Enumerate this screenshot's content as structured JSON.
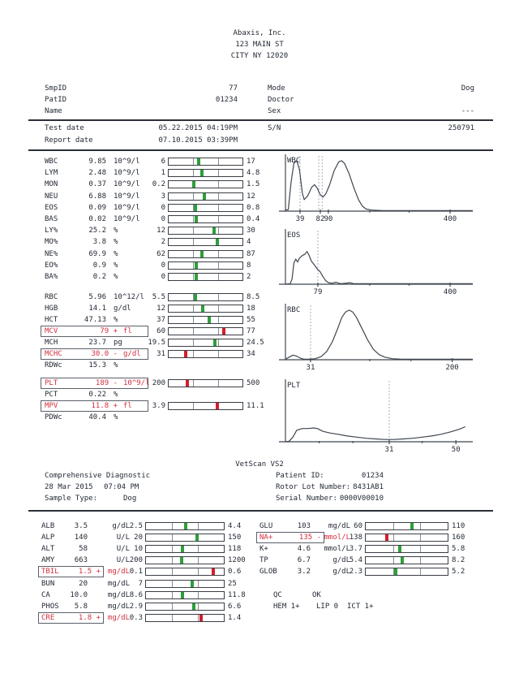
{
  "palette": {
    "ink": "#232a36",
    "flag_red": "#d22f3f",
    "marker_green": "#2f9e3c",
    "marker_red": "#d21f2b",
    "curve": "#3f4650",
    "dashed_line": "#a9afb5"
  },
  "header": {
    "org": "Abaxis, Inc.",
    "address1": "123 MAIN ST",
    "address2": "CITY NY 12020"
  },
  "patient_info": {
    "smp_id_label": "SmpID",
    "smp_id": "77",
    "pat_id_label": "PatID",
    "pat_id": "01234",
    "name_label": "Name",
    "name": "",
    "mode_label": "Mode",
    "mode": "Dog",
    "doctor_label": "Doctor",
    "doctor": "",
    "sex_label": "Sex",
    "sex": "---",
    "test_date_label": "Test date",
    "test_date": "05.22.2015 04:19PM",
    "report_date_label": "Report date",
    "report_date": "07.10.2015 03:39PM",
    "sn_label": "S/N",
    "sn": "250791"
  },
  "cbc": {
    "groups": [
      {
        "name": "wbc-differential",
        "rows": [
          {
            "label": "WBC",
            "value": "9.85",
            "unit": "10^9/l",
            "flag": null,
            "low": "6",
            "high": "17",
            "pos": 0.41
          },
          {
            "label": "LYM",
            "value": "2.48",
            "unit": "10^9/l",
            "flag": null,
            "low": "1",
            "high": "4.8",
            "pos": 0.45
          },
          {
            "label": "MON",
            "value": "0.37",
            "unit": "10^9/l",
            "flag": null,
            "low": "0.2",
            "high": "1.5",
            "pos": 0.34
          },
          {
            "label": "NEU",
            "value": "6.88",
            "unit": "10^9/l",
            "flag": null,
            "low": "3",
            "high": "12",
            "pos": 0.48
          },
          {
            "label": "EOS",
            "value": "0.09",
            "unit": "10^9/l",
            "flag": null,
            "low": "0",
            "high": "0.8",
            "pos": 0.36
          },
          {
            "label": "BAS",
            "value": "0.02",
            "unit": "10^9/l",
            "flag": null,
            "low": "0",
            "high": "0.4",
            "pos": 0.37
          },
          {
            "label": "LY%",
            "value": "25.2",
            "unit": "%",
            "flag": null,
            "low": "12",
            "high": "30",
            "pos": 0.61
          },
          {
            "label": "MO%",
            "value": "3.8",
            "unit": "%",
            "flag": null,
            "low": "2",
            "high": "4",
            "pos": 0.66
          },
          {
            "label": "NE%",
            "value": "69.9",
            "unit": "%",
            "flag": null,
            "low": "62",
            "high": "87",
            "pos": 0.45
          },
          {
            "label": "EO%",
            "value": "0.9",
            "unit": "%",
            "flag": null,
            "low": "0",
            "high": "8",
            "pos": 0.37
          },
          {
            "label": "BA%",
            "value": "0.2",
            "unit": "%",
            "flag": null,
            "low": "0",
            "high": "2",
            "pos": 0.37
          }
        ]
      },
      {
        "name": "rbc-indices",
        "rows": [
          {
            "label": "RBC",
            "value": "5.96",
            "unit": "10^12/l",
            "flag": null,
            "low": "5.5",
            "high": "8.5",
            "pos": 0.36
          },
          {
            "label": "HGB",
            "value": "14.1",
            "unit": "g/dl",
            "flag": null,
            "low": "12",
            "high": "18",
            "pos": 0.46
          },
          {
            "label": "HCT",
            "value": "47.13",
            "unit": "%",
            "flag": null,
            "low": "37",
            "high": "55",
            "pos": 0.55
          },
          {
            "label": "MCV",
            "value": "79",
            "unit": "fl",
            "flag": "+",
            "low": "60",
            "high": "77",
            "pos": 0.75
          },
          {
            "label": "MCH",
            "value": "23.7",
            "unit": "pg",
            "flag": null,
            "low": "19.5",
            "high": "24.5",
            "pos": 0.63
          },
          {
            "label": "MCHC",
            "value": "30.0",
            "unit": "g/dl",
            "flag": "-",
            "low": "31",
            "high": "34",
            "pos": 0.23
          },
          {
            "label": "RDWc",
            "value": "15.3",
            "unit": "%",
            "flag": null,
            "low": null,
            "high": null,
            "pos": null
          }
        ]
      },
      {
        "name": "platelets",
        "rows": [
          {
            "label": "PLT",
            "value": "189",
            "unit": "10^9/l",
            "flag": "-",
            "low": "200",
            "high": "500",
            "pos": 0.25
          },
          {
            "label": "PCT",
            "value": "0.22",
            "unit": "%",
            "flag": null,
            "low": null,
            "high": null,
            "pos": null
          },
          {
            "label": "MPV",
            "value": "11.8",
            "unit": "fl",
            "flag": "+",
            "low": "3.9",
            "high": "11.1",
            "pos": 0.66
          },
          {
            "label": "PDWc",
            "value": "40.4",
            "unit": "%",
            "flag": null,
            "low": null,
            "high": null,
            "pos": null
          }
        ]
      }
    ]
  },
  "chart_data": [
    {
      "type": "area",
      "name": "WBC",
      "xlabel_ticks": [
        "39",
        "82",
        "90",
        "400"
      ],
      "ticks": [
        {
          "pos": 0.078,
          "label": "39"
        },
        {
          "pos": 0.186,
          "label": "82"
        },
        {
          "pos": 0.229,
          "label": "90"
        },
        {
          "pos": 0.879,
          "label": "400"
        }
      ],
      "minor_ticks": [
        0.45,
        0.66
      ],
      "vlines": [
        0.078,
        0.178,
        0.196
      ],
      "points": [
        [
          0,
          0.02
        ],
        [
          0.015,
          0.03
        ],
        [
          0.03,
          0.55
        ],
        [
          0.045,
          0.92
        ],
        [
          0.06,
          0.97
        ],
        [
          0.075,
          0.8
        ],
        [
          0.09,
          0.35
        ],
        [
          0.1,
          0.22
        ],
        [
          0.12,
          0.3
        ],
        [
          0.14,
          0.46
        ],
        [
          0.155,
          0.51
        ],
        [
          0.17,
          0.44
        ],
        [
          0.185,
          0.32
        ],
        [
          0.2,
          0.27
        ],
        [
          0.215,
          0.33
        ],
        [
          0.235,
          0.5
        ],
        [
          0.26,
          0.78
        ],
        [
          0.285,
          0.95
        ],
        [
          0.3,
          0.97
        ],
        [
          0.315,
          0.92
        ],
        [
          0.34,
          0.72
        ],
        [
          0.365,
          0.45
        ],
        [
          0.39,
          0.22
        ],
        [
          0.41,
          0.1
        ],
        [
          0.43,
          0.04
        ],
        [
          0.46,
          0.02
        ],
        [
          0.52,
          0.01
        ],
        [
          0.6,
          0.01
        ],
        [
          0.7,
          0.01
        ],
        [
          0.85,
          0.01
        ],
        [
          1,
          0.01
        ]
      ]
    },
    {
      "type": "area",
      "name": "EOS",
      "xlabel_ticks": [
        "79",
        "400"
      ],
      "ticks": [
        {
          "pos": 0.173,
          "label": "79"
        },
        {
          "pos": 0.879,
          "label": "400"
        }
      ],
      "minor_ticks": [
        0.45,
        0.66
      ],
      "vlines": [
        0.173
      ],
      "points": [
        [
          0,
          0
        ],
        [
          0.025,
          0.01
        ],
        [
          0.035,
          0.1
        ],
        [
          0.045,
          0.42
        ],
        [
          0.055,
          0.5
        ],
        [
          0.065,
          0.44
        ],
        [
          0.075,
          0.52
        ],
        [
          0.09,
          0.57
        ],
        [
          0.105,
          0.6
        ],
        [
          0.115,
          0.65
        ],
        [
          0.125,
          0.58
        ],
        [
          0.14,
          0.45
        ],
        [
          0.155,
          0.38
        ],
        [
          0.17,
          0.3
        ],
        [
          0.185,
          0.25
        ],
        [
          0.2,
          0.15
        ],
        [
          0.215,
          0.07
        ],
        [
          0.23,
          0.03
        ],
        [
          0.25,
          0.02
        ],
        [
          0.27,
          0.04
        ],
        [
          0.285,
          0.02
        ],
        [
          0.3,
          0.01
        ],
        [
          0.345,
          0.03
        ],
        [
          0.365,
          0.01
        ],
        [
          0.42,
          0.01
        ],
        [
          0.55,
          0.01
        ],
        [
          0.75,
          0.01
        ],
        [
          1,
          0.01
        ]
      ]
    },
    {
      "type": "area",
      "name": "RBC",
      "xlabel_ticks": [
        "31",
        "200"
      ],
      "ticks": [
        {
          "pos": 0.134,
          "label": "31"
        },
        {
          "pos": 0.89,
          "label": "200"
        }
      ],
      "minor_ticks": [
        0.45,
        0.67
      ],
      "vlines": [
        0.134
      ],
      "points": [
        [
          0,
          0.01
        ],
        [
          0.02,
          0.05
        ],
        [
          0.04,
          0.09
        ],
        [
          0.06,
          0.07
        ],
        [
          0.08,
          0.03
        ],
        [
          0.1,
          0.01
        ],
        [
          0.13,
          0.01
        ],
        [
          0.16,
          0.02
        ],
        [
          0.19,
          0.06
        ],
        [
          0.22,
          0.16
        ],
        [
          0.25,
          0.35
        ],
        [
          0.28,
          0.62
        ],
        [
          0.3,
          0.82
        ],
        [
          0.32,
          0.93
        ],
        [
          0.34,
          0.97
        ],
        [
          0.36,
          0.93
        ],
        [
          0.38,
          0.82
        ],
        [
          0.41,
          0.6
        ],
        [
          0.44,
          0.38
        ],
        [
          0.47,
          0.2
        ],
        [
          0.5,
          0.1
        ],
        [
          0.53,
          0.05
        ],
        [
          0.57,
          0.02
        ],
        [
          0.62,
          0.01
        ],
        [
          0.7,
          0.01
        ],
        [
          0.85,
          0.01
        ],
        [
          1,
          0.01
        ]
      ]
    },
    {
      "type": "area",
      "name": "PLT",
      "xlabel_ticks": [
        "31",
        "50"
      ],
      "ticks": [
        {
          "pos": 0.554,
          "label": "31"
        },
        {
          "pos": 0.91,
          "label": "50"
        }
      ],
      "minor_ticks": [
        0.18,
        0.36,
        0.73
      ],
      "vlines": [
        0.554
      ],
      "points": [
        [
          0,
          0
        ],
        [
          0.02,
          0.01
        ],
        [
          0.04,
          0.08
        ],
        [
          0.06,
          0.2
        ],
        [
          0.09,
          0.23
        ],
        [
          0.12,
          0.23
        ],
        [
          0.15,
          0.24
        ],
        [
          0.17,
          0.23
        ],
        [
          0.2,
          0.18
        ],
        [
          0.24,
          0.15
        ],
        [
          0.28,
          0.13
        ],
        [
          0.33,
          0.1
        ],
        [
          0.38,
          0.08
        ],
        [
          0.43,
          0.06
        ],
        [
          0.48,
          0.05
        ],
        [
          0.53,
          0.04
        ],
        [
          0.58,
          0.04
        ],
        [
          0.63,
          0.05
        ],
        [
          0.68,
          0.06
        ],
        [
          0.73,
          0.08
        ],
        [
          0.78,
          0.1
        ],
        [
          0.83,
          0.13
        ],
        [
          0.88,
          0.17
        ],
        [
          0.93,
          0.22
        ],
        [
          0.96,
          0.26
        ]
      ]
    }
  ],
  "vs2": {
    "title": "VetScan VS2",
    "test_name": "Comprehensive Diagnostic",
    "date": "28 Mar 2015",
    "time": "07:04 PM",
    "sample_type_label": "Sample Type:",
    "sample_type": "Dog",
    "patient_id_label": "Patient ID:",
    "patient_id": "01234",
    "rotor_label": "Rotor Lot Number:",
    "rotor": "8431AB1",
    "serial_label": "Serial Number:",
    "serial": "0000V00010"
  },
  "chemistry": {
    "left_rows": [
      {
        "label": "ALB",
        "value": "3.5",
        "unit": "g/dL",
        "flag": null,
        "low": "2.5",
        "high": "4.4",
        "pos": 0.51
      },
      {
        "label": "ALP",
        "value": "140",
        "unit": "U/L",
        "flag": null,
        "low": "20",
        "high": "150",
        "pos": 0.66
      },
      {
        "label": "ALT",
        "value": "58",
        "unit": "U/L",
        "flag": null,
        "low": "10",
        "high": "118",
        "pos": 0.47
      },
      {
        "label": "AMY",
        "value": "663",
        "unit": "U/L",
        "flag": null,
        "low": "200",
        "high": "1200",
        "pos": 0.46
      },
      {
        "label": "TBIL",
        "value": "1.5",
        "unit": "mg/dL",
        "flag": "+",
        "low": "0.1",
        "high": "0.6",
        "pos": 0.86
      },
      {
        "label": "BUN",
        "value": "20",
        "unit": "mg/dL",
        "flag": null,
        "low": "7",
        "high": "25",
        "pos": 0.59
      },
      {
        "label": "CA",
        "value": "10.0",
        "unit": "mg/dL",
        "flag": null,
        "low": "8.6",
        "high": "11.8",
        "pos": 0.47
      },
      {
        "label": "PHOS",
        "value": "5.8",
        "unit": "mg/dL",
        "flag": null,
        "low": "2.9",
        "high": "6.6",
        "pos": 0.61
      },
      {
        "label": "CRE",
        "value": "1.8",
        "unit": "mg/dL",
        "flag": "+",
        "low": "0.3",
        "high": "1.4",
        "pos": 0.71
      }
    ],
    "right_rows": [
      {
        "label": "GLU",
        "value": "103",
        "unit": "mg/dL",
        "flag": null,
        "low": "60",
        "high": "110",
        "pos": 0.56
      },
      {
        "label": "NA+",
        "value": "135",
        "unit": "mmol/L",
        "flag": "-",
        "low": "138",
        "high": "160",
        "pos": 0.26
      },
      {
        "label": "K+",
        "value": "4.6",
        "unit": "mmol/L",
        "flag": null,
        "low": "3.7",
        "high": "5.8",
        "pos": 0.42
      },
      {
        "label": "TP",
        "value": "6.7",
        "unit": "g/dL",
        "flag": null,
        "low": "5.4",
        "high": "8.2",
        "pos": 0.45
      },
      {
        "label": "GLOB",
        "value": "3.2",
        "unit": "g/dL",
        "flag": null,
        "low": "2.3",
        "high": "5.2",
        "pos": 0.37
      }
    ]
  },
  "qc": {
    "qc_label": "QC",
    "qc_value": "OK",
    "hem": "HEM 1+",
    "lip": "LIP 0",
    "ict": "ICT 1+"
  }
}
